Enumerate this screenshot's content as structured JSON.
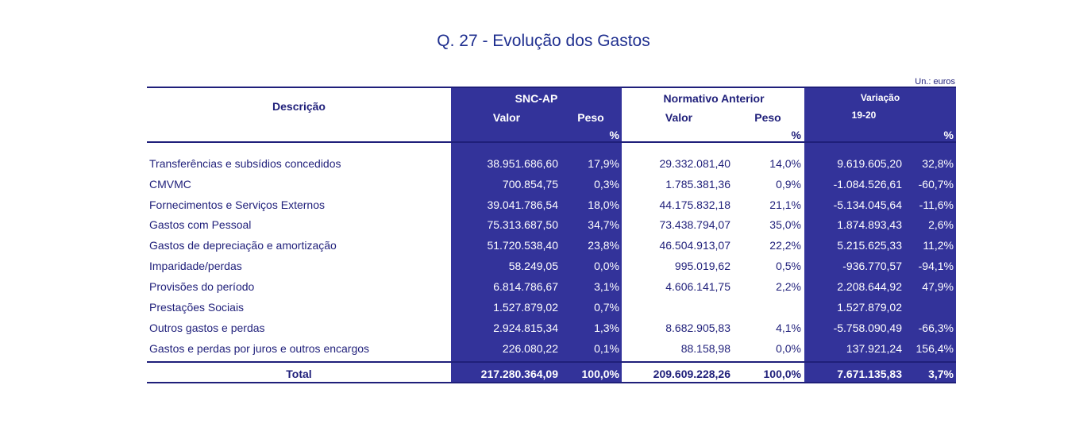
{
  "title": "Q. 27 - Evolução dos Gastos",
  "unit": "Un.: euros",
  "headers": {
    "descricao": "Descrição",
    "snc": "SNC-AP",
    "normativo": "Normativo Anterior",
    "variacao": "Variação",
    "variacao_period": "19-20",
    "valor": "Valor",
    "peso": "Peso",
    "pct": "%"
  },
  "rows": [
    {
      "desc": "Transferências e subsídios concedidos",
      "snc_valor": "38.951.686,60",
      "snc_peso": "17,9%",
      "na_valor": "29.332.081,40",
      "na_peso": "14,0%",
      "var_valor": "9.619.605,20",
      "var_pct": "32,8%"
    },
    {
      "desc": "CMVMC",
      "snc_valor": "700.854,75",
      "snc_peso": "0,3%",
      "na_valor": "1.785.381,36",
      "na_peso": "0,9%",
      "var_valor": "-1.084.526,61",
      "var_pct": "-60,7%"
    },
    {
      "desc": "Fornecimentos e Serviços Externos",
      "snc_valor": "39.041.786,54",
      "snc_peso": "18,0%",
      "na_valor": "44.175.832,18",
      "na_peso": "21,1%",
      "var_valor": "-5.134.045,64",
      "var_pct": "-11,6%"
    },
    {
      "desc": "Gastos com Pessoal",
      "snc_valor": "75.313.687,50",
      "snc_peso": "34,7%",
      "na_valor": "73.438.794,07",
      "na_peso": "35,0%",
      "var_valor": "1.874.893,43",
      "var_pct": "2,6%"
    },
    {
      "desc": "Gastos de depreciação e amortização",
      "snc_valor": "51.720.538,40",
      "snc_peso": "23,8%",
      "na_valor": "46.504.913,07",
      "na_peso": "22,2%",
      "var_valor": "5.215.625,33",
      "var_pct": "11,2%"
    },
    {
      "desc": "Imparidade/perdas",
      "snc_valor": "58.249,05",
      "snc_peso": "0,0%",
      "na_valor": "995.019,62",
      "na_peso": "0,5%",
      "var_valor": "-936.770,57",
      "var_pct": "-94,1%"
    },
    {
      "desc": "Provisões do período",
      "snc_valor": "6.814.786,67",
      "snc_peso": "3,1%",
      "na_valor": "4.606.141,75",
      "na_peso": "2,2%",
      "var_valor": "2.208.644,92",
      "var_pct": "47,9%"
    },
    {
      "desc": "Prestações Sociais",
      "snc_valor": "1.527.879,02",
      "snc_peso": "0,7%",
      "na_valor": "",
      "na_peso": "",
      "var_valor": "1.527.879,02",
      "var_pct": ""
    },
    {
      "desc": "Outros gastos e perdas",
      "snc_valor": "2.924.815,34",
      "snc_peso": "1,3%",
      "na_valor": "8.682.905,83",
      "na_peso": "4,1%",
      "var_valor": "-5.758.090,49",
      "var_pct": "-66,3%"
    },
    {
      "desc": "Gastos e perdas por juros e outros encargos",
      "snc_valor": "226.080,22",
      "snc_peso": "0,1%",
      "na_valor": "88.158,98",
      "na_peso": "0,0%",
      "var_valor": "137.921,24",
      "var_pct": "156,4%"
    }
  ],
  "total": {
    "desc": "Total",
    "snc_valor": "217.280.364,09",
    "snc_peso": "100,0%",
    "na_valor": "209.609.228,26",
    "na_peso": "100,0%",
    "var_valor": "7.671.135,83",
    "var_pct": "3,7%"
  },
  "colors": {
    "band": "#33339a",
    "text": "#1f1f7a",
    "title": "#1f2f8f"
  }
}
